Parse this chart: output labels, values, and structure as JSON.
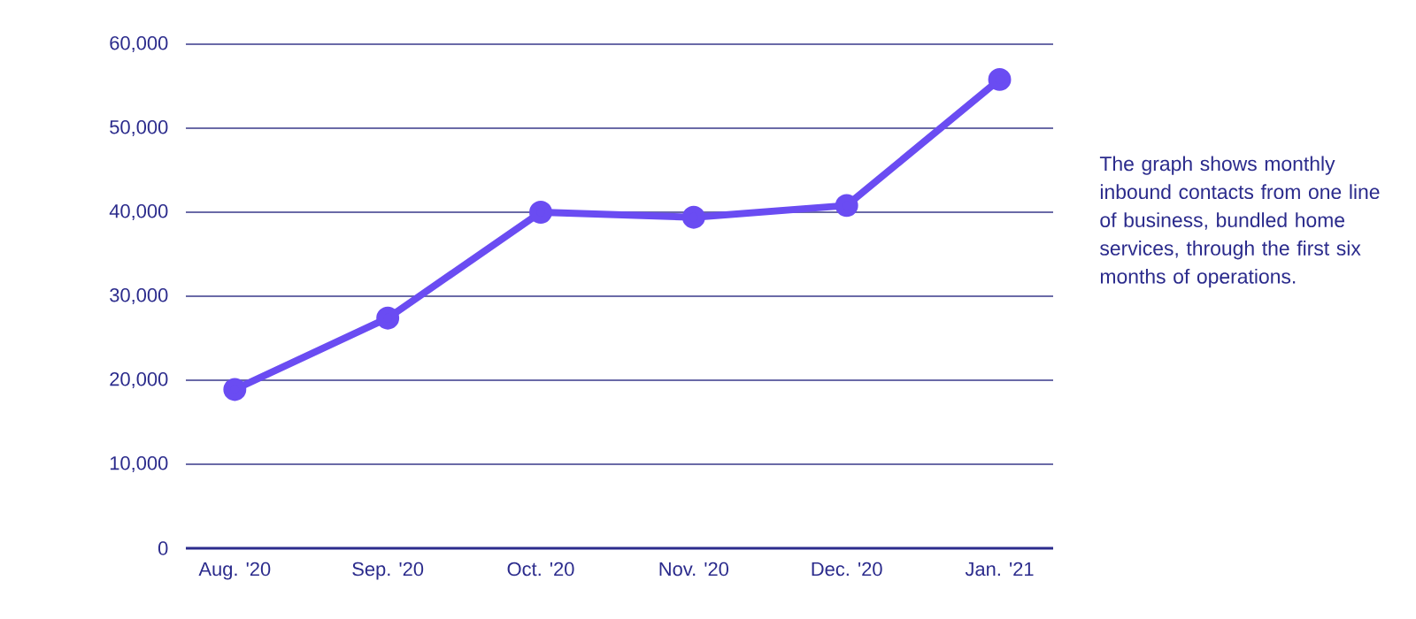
{
  "chart_data": {
    "type": "line",
    "categories": [
      "Aug. '20",
      "Sep. '20",
      "Oct. '20",
      "Nov. '20",
      "Dec. '20",
      "Jan. '21"
    ],
    "values": [
      18900,
      27400,
      40000,
      39400,
      40800,
      55800
    ],
    "color": "#6a4cf2",
    "marker": "circle",
    "line_style": "solid",
    "grid": "y",
    "ylim": [
      0,
      60000
    ],
    "yticks": [
      0,
      {
        "value": 10000,
        "label": "10,000"
      },
      {
        "value": 20000,
        "label": "20,000"
      },
      {
        "value": 30000,
        "label": "30,000"
      },
      {
        "value": 40000,
        "label": "40,000"
      },
      {
        "value": 50000,
        "label": "50,000"
      },
      {
        "value": 60000,
        "label": "60,000"
      }
    ],
    "annotations": [
      "The graph shows monthly inbound contacts from one line of business, bundled home services, through the first six months of operations."
    ]
  }
}
